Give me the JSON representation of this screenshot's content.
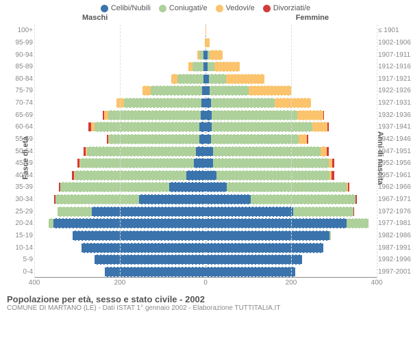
{
  "chart": {
    "type": "population-pyramid",
    "title": "Popolazione per età, sesso e stato civile - 2002",
    "subtitle": "COMUNE DI MARTANO (LE) - Dati ISTAT 1° gennaio 2002 - Elaborazione TUTTITALIA.IT",
    "y_left_title": "Fasce di età",
    "y_right_title": "Anni di nascita",
    "header_male": "Maschi",
    "header_female": "Femmine",
    "x_max": 400,
    "x_ticks": [
      400,
      200,
      0,
      200,
      400
    ],
    "background_color": "#ffffff",
    "grid_color": "#dddddd",
    "legend": [
      {
        "label": "Celibi/Nubili",
        "color": "#3b74ac"
      },
      {
        "label": "Coniugati/e",
        "color": "#aed09b"
      },
      {
        "label": "Vedovi/e",
        "color": "#fbc36c"
      },
      {
        "label": "Divorziati/e",
        "color": "#d13b3b"
      }
    ],
    "colors": {
      "single": "#3b74ac",
      "married": "#aed09b",
      "widowed": "#fbc36c",
      "divorced": "#d13b3b"
    },
    "rows": [
      {
        "age": "100+",
        "birth": "≤ 1901",
        "m": {
          "s": 0,
          "c": 0,
          "w": 0,
          "d": 0
        },
        "f": {
          "s": 0,
          "c": 0,
          "w": 2,
          "d": 0
        }
      },
      {
        "age": "95-99",
        "birth": "1902-1906",
        "m": {
          "s": 0,
          "c": 0,
          "w": 2,
          "d": 0
        },
        "f": {
          "s": 0,
          "c": 0,
          "w": 10,
          "d": 0
        }
      },
      {
        "age": "90-94",
        "birth": "1907-1911",
        "m": {
          "s": 5,
          "c": 10,
          "w": 5,
          "d": 0
        },
        "f": {
          "s": 5,
          "c": 5,
          "w": 30,
          "d": 0
        }
      },
      {
        "age": "85-89",
        "birth": "1912-1916",
        "m": {
          "s": 5,
          "c": 25,
          "w": 10,
          "d": 0
        },
        "f": {
          "s": 5,
          "c": 15,
          "w": 60,
          "d": 0
        }
      },
      {
        "age": "80-84",
        "birth": "1917-1921",
        "m": {
          "s": 5,
          "c": 60,
          "w": 15,
          "d": 0
        },
        "f": {
          "s": 8,
          "c": 40,
          "w": 90,
          "d": 0
        }
      },
      {
        "age": "75-79",
        "birth": "1922-1926",
        "m": {
          "s": 8,
          "c": 120,
          "w": 20,
          "d": 0
        },
        "f": {
          "s": 10,
          "c": 90,
          "w": 100,
          "d": 0
        }
      },
      {
        "age": "70-74",
        "birth": "1927-1931",
        "m": {
          "s": 10,
          "c": 180,
          "w": 18,
          "d": 0
        },
        "f": {
          "s": 12,
          "c": 150,
          "w": 85,
          "d": 0
        }
      },
      {
        "age": "65-69",
        "birth": "1932-1936",
        "m": {
          "s": 12,
          "c": 215,
          "w": 10,
          "d": 3
        },
        "f": {
          "s": 15,
          "c": 200,
          "w": 60,
          "d": 2
        }
      },
      {
        "age": "60-64",
        "birth": "1937-1941",
        "m": {
          "s": 15,
          "c": 245,
          "w": 8,
          "d": 5
        },
        "f": {
          "s": 15,
          "c": 235,
          "w": 35,
          "d": 3
        }
      },
      {
        "age": "55-59",
        "birth": "1942-1946",
        "m": {
          "s": 15,
          "c": 210,
          "w": 3,
          "d": 3
        },
        "f": {
          "s": 12,
          "c": 205,
          "w": 20,
          "d": 3
        }
      },
      {
        "age": "50-54",
        "birth": "1947-1951",
        "m": {
          "s": 22,
          "c": 255,
          "w": 3,
          "d": 5
        },
        "f": {
          "s": 18,
          "c": 250,
          "w": 15,
          "d": 5
        }
      },
      {
        "age": "45-49",
        "birth": "1952-1956",
        "m": {
          "s": 28,
          "c": 265,
          "w": 2,
          "d": 5
        },
        "f": {
          "s": 18,
          "c": 270,
          "w": 8,
          "d": 5
        }
      },
      {
        "age": "40-44",
        "birth": "1957-1961",
        "m": {
          "s": 45,
          "c": 260,
          "w": 2,
          "d": 5
        },
        "f": {
          "s": 25,
          "c": 265,
          "w": 5,
          "d": 5
        }
      },
      {
        "age": "35-39",
        "birth": "1962-1966",
        "m": {
          "s": 85,
          "c": 255,
          "w": 0,
          "d": 3
        },
        "f": {
          "s": 50,
          "c": 280,
          "w": 3,
          "d": 3
        }
      },
      {
        "age": "30-34",
        "birth": "1967-1971",
        "m": {
          "s": 155,
          "c": 195,
          "w": 0,
          "d": 3
        },
        "f": {
          "s": 105,
          "c": 245,
          "w": 0,
          "d": 3
        }
      },
      {
        "age": "25-29",
        "birth": "1972-1976",
        "m": {
          "s": 265,
          "c": 80,
          "w": 0,
          "d": 0
        },
        "f": {
          "s": 205,
          "c": 140,
          "w": 0,
          "d": 2
        }
      },
      {
        "age": "20-24",
        "birth": "1977-1981",
        "m": {
          "s": 355,
          "c": 12,
          "w": 0,
          "d": 0
        },
        "f": {
          "s": 330,
          "c": 50,
          "w": 0,
          "d": 0
        }
      },
      {
        "age": "15-19",
        "birth": "1982-1986",
        "m": {
          "s": 310,
          "c": 0,
          "w": 0,
          "d": 0
        },
        "f": {
          "s": 290,
          "c": 3,
          "w": 0,
          "d": 0
        }
      },
      {
        "age": "10-14",
        "birth": "1987-1991",
        "m": {
          "s": 290,
          "c": 0,
          "w": 0,
          "d": 0
        },
        "f": {
          "s": 275,
          "c": 0,
          "w": 0,
          "d": 0
        }
      },
      {
        "age": "5-9",
        "birth": "1992-1996",
        "m": {
          "s": 260,
          "c": 0,
          "w": 0,
          "d": 0
        },
        "f": {
          "s": 225,
          "c": 0,
          "w": 0,
          "d": 0
        }
      },
      {
        "age": "0-4",
        "birth": "1997-2001",
        "m": {
          "s": 235,
          "c": 0,
          "w": 0,
          "d": 0
        },
        "f": {
          "s": 210,
          "c": 0,
          "w": 0,
          "d": 0
        }
      }
    ]
  }
}
